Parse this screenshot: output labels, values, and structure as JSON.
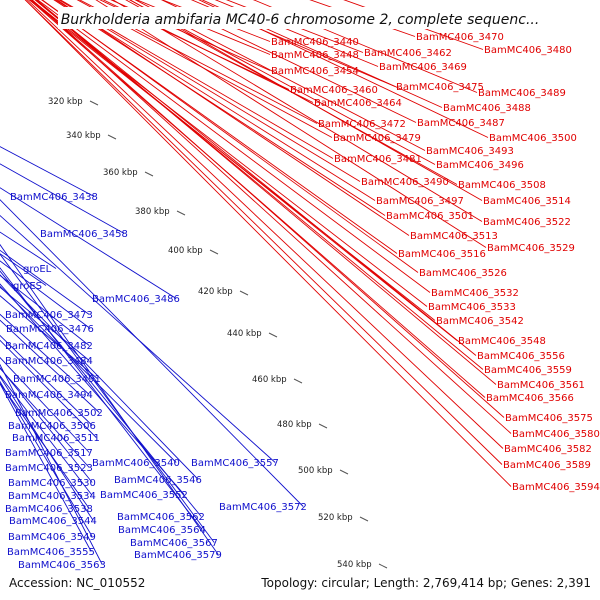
{
  "title": "Burkholderia ambifaria MC40-6 chromosome 2, complete sequenc...",
  "accession": "Accession: NC_010552",
  "summary": "Topology: circular; Length: 2,769,414 bp; Genes: 2,391",
  "colors": {
    "forward_label": "#e00000",
    "reverse_label": "#1010cc",
    "forward_gene": "#ff0000",
    "reverse_gene": "#0000ff",
    "backbone": "#909090",
    "gc_dots": "#228b22"
  },
  "scale_ticks": [
    "320 kbp",
    "340 kbp",
    "360 kbp",
    "380 kbp",
    "400 kbp",
    "420 kbp",
    "440 kbp",
    "460 kbp",
    "480 kbp",
    "500 kbp",
    "520 kbp",
    "540 kbp"
  ],
  "forward_labels": [
    "BamMC406_3440",
    "BamMC406_3470",
    "BamMC406_3448",
    "BamMC406_3462",
    "BamMC406_3480",
    "BamMC406_3454",
    "BamMC406_3469",
    "BamMC406_3475",
    "BamMC406_3460",
    "BamMC406_3489",
    "BamMC406_3464",
    "BamMC406_3488",
    "BamMC406_3472",
    "BamMC406_3487",
    "BamMC406_3479",
    "BamMC406_3500",
    "BamMC406_3493",
    "BamMC406_3481",
    "BamMC406_3496",
    "BamMC406_3490",
    "BamMC406_3508",
    "BamMC406_3497",
    "BamMC406_3514",
    "BamMC406_3501",
    "BamMC406_3522",
    "BamMC406_3513",
    "BamMC406_3529",
    "BamMC406_3516",
    "BamMC406_3526",
    "BamMC406_3532",
    "BamMC406_3533",
    "BamMC406_3542",
    "BamMC406_3548",
    "BamMC406_3556",
    "BamMC406_3559",
    "BamMC406_3561",
    "BamMC406_3566",
    "BamMC406_3575",
    "BamMC406_3580",
    "BamMC406_3582",
    "BamMC406_3589",
    "BamMC406_3594"
  ],
  "reverse_labels": [
    "BamMC406_3438",
    "BamMC406_3458",
    "groEL",
    "groES",
    "BamMC406_3486",
    "BamMC406_3473",
    "BamMC406_3476",
    "BamMC406_3482",
    "BamMC406_3484",
    "BamMC406_3491",
    "BamMC406_3494",
    "BamMC406_3502",
    "BamMC406_3506",
    "BamMC406_3511",
    "BamMC406_3517",
    "BamMC406_3523",
    "BamMC406_3540",
    "BamMC406_3557",
    "BamMC406_3546",
    "BamMC406_3530",
    "BamMC406_3534",
    "BamMC406_3552",
    "BamMC406_3538",
    "BamMC406_3572",
    "BamMC406_3562",
    "BamMC406_3544",
    "BamMC406_3564",
    "BamMC406_3549",
    "BamMC406_3567",
    "BamMC406_3555",
    "BamMC406_3579",
    "BamMC406_3563"
  ]
}
